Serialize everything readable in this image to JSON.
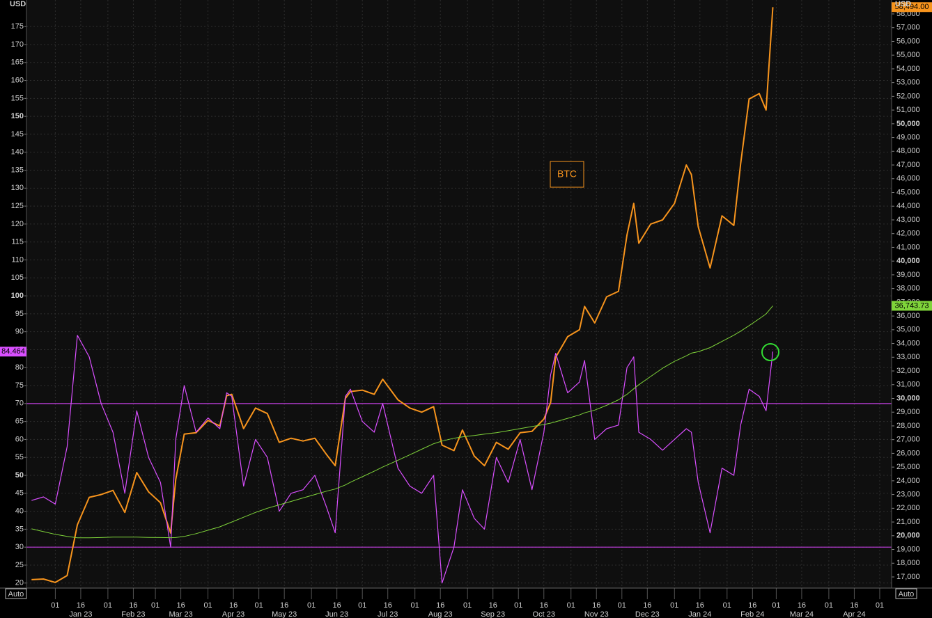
{
  "chart_data": {
    "type": "line",
    "y_unit": "USD",
    "y2_unit": "USD",
    "annotation": "BTC",
    "scale_mode_left": "Auto",
    "scale_mode_right": "Auto",
    "grid": true,
    "xlim": [
      "2022-12-15",
      "2024-05-08"
    ],
    "ylim": [
      18.6,
      182.4
    ],
    "y2lim": [
      16189,
      59014
    ],
    "yticks": [
      20,
      25,
      30,
      35,
      40,
      45,
      50,
      55,
      60,
      65,
      70,
      75,
      80,
      85,
      90,
      95,
      100,
      105,
      110,
      115,
      120,
      125,
      130,
      135,
      140,
      145,
      150,
      155,
      160,
      165,
      170,
      175
    ],
    "y2ticks": [
      {
        "value": 17000,
        "label": "17,000"
      },
      {
        "value": 18000,
        "label": "18,000"
      },
      {
        "value": 19000,
        "label": "19,000"
      },
      {
        "value": 20000,
        "label": "20,000"
      },
      {
        "value": 21000,
        "label": "21,000"
      },
      {
        "value": 22000,
        "label": "22,000"
      },
      {
        "value": 23000,
        "label": "23,000"
      },
      {
        "value": 24000,
        "label": "24,000"
      },
      {
        "value": 25000,
        "label": "25,000"
      },
      {
        "value": 26000,
        "label": "26,000"
      },
      {
        "value": 27000,
        "label": "27,000"
      },
      {
        "value": 28000,
        "label": "28,000"
      },
      {
        "value": 29000,
        "label": "29,000"
      },
      {
        "value": 30000,
        "label": "30,000"
      },
      {
        "value": 31000,
        "label": "31,000"
      },
      {
        "value": 32000,
        "label": "32,000"
      },
      {
        "value": 33000,
        "label": "33,000"
      },
      {
        "value": 34000,
        "label": "34,000"
      },
      {
        "value": 35000,
        "label": "35,000"
      },
      {
        "value": 36000,
        "label": "36,000"
      },
      {
        "value": 37000,
        "label": "37,000"
      },
      {
        "value": 38000,
        "label": "38,000"
      },
      {
        "value": 39000,
        "label": "39,000"
      },
      {
        "value": 40000,
        "label": "40,000"
      },
      {
        "value": 41000,
        "label": "41,000"
      },
      {
        "value": 42000,
        "label": "42,000"
      },
      {
        "value": 43000,
        "label": "43,000"
      },
      {
        "value": 44000,
        "label": "44,000"
      },
      {
        "value": 45000,
        "label": "45,000"
      },
      {
        "value": 46000,
        "label": "46,000"
      },
      {
        "value": 47000,
        "label": "47,000"
      },
      {
        "value": 48000,
        "label": "48,000"
      },
      {
        "value": 49000,
        "label": "49,000"
      },
      {
        "value": 50000,
        "label": "50,000"
      },
      {
        "value": 51000,
        "label": "51,000"
      },
      {
        "value": 52000,
        "label": "52,000"
      },
      {
        "value": 53000,
        "label": "53,000"
      },
      {
        "value": 54000,
        "label": "54,000"
      },
      {
        "value": 55000,
        "label": "55,000"
      },
      {
        "value": 56000,
        "label": "56,000"
      },
      {
        "value": 57000,
        "label": "57,000"
      },
      {
        "value": 58000,
        "label": "58,000"
      }
    ],
    "xticks": [
      {
        "value": "2023-01-01",
        "label": "01"
      },
      {
        "value": "2023-01-16",
        "label": "16"
      },
      {
        "value": "2023-02-01",
        "label": "01"
      },
      {
        "value": "2023-02-16",
        "label": "16"
      },
      {
        "value": "2023-03-01",
        "label": "01"
      },
      {
        "value": "2023-03-16",
        "label": "16"
      },
      {
        "value": "2023-04-01",
        "label": "01"
      },
      {
        "value": "2023-04-16",
        "label": "16"
      },
      {
        "value": "2023-05-01",
        "label": "01"
      },
      {
        "value": "2023-05-16",
        "label": "16"
      },
      {
        "value": "2023-06-01",
        "label": "01"
      },
      {
        "value": "2023-06-16",
        "label": "16"
      },
      {
        "value": "2023-07-01",
        "label": "01"
      },
      {
        "value": "2023-07-16",
        "label": "16"
      },
      {
        "value": "2023-08-01",
        "label": "01"
      },
      {
        "value": "2023-08-16",
        "label": "16"
      },
      {
        "value": "2023-09-01",
        "label": "01"
      },
      {
        "value": "2023-09-16",
        "label": "16"
      },
      {
        "value": "2023-10-01",
        "label": "01"
      },
      {
        "value": "2023-10-16",
        "label": "16"
      },
      {
        "value": "2023-11-01",
        "label": "01"
      },
      {
        "value": "2023-11-16",
        "label": "16"
      },
      {
        "value": "2023-12-01",
        "label": "01"
      },
      {
        "value": "2023-12-16",
        "label": "16"
      },
      {
        "value": "2024-01-01",
        "label": "01"
      },
      {
        "value": "2024-01-16",
        "label": "16"
      },
      {
        "value": "2024-02-01",
        "label": "01"
      },
      {
        "value": "2024-02-16",
        "label": "16"
      },
      {
        "value": "2024-03-01",
        "label": "01"
      },
      {
        "value": "2024-03-16",
        "label": "16"
      },
      {
        "value": "2024-04-01",
        "label": "01"
      },
      {
        "value": "2024-04-16",
        "label": "16"
      },
      {
        "value": "2024-05-01",
        "label": "01"
      }
    ],
    "month_labels": [
      {
        "value": "2023-01-16",
        "label": "Jan 23"
      },
      {
        "value": "2023-02-16",
        "label": "Feb 23"
      },
      {
        "value": "2023-03-16",
        "label": "Mar 23"
      },
      {
        "value": "2023-04-16",
        "label": "Apr 23"
      },
      {
        "value": "2023-05-16",
        "label": "May 23"
      },
      {
        "value": "2023-06-16",
        "label": "Jun 23"
      },
      {
        "value": "2023-07-16",
        "label": "Jul 23"
      },
      {
        "value": "2023-08-16",
        "label": "Aug 23"
      },
      {
        "value": "2023-09-16",
        "label": "Sep 23"
      },
      {
        "value": "2023-10-16",
        "label": "Oct 23"
      },
      {
        "value": "2023-11-16",
        "label": "Nov 23"
      },
      {
        "value": "2023-12-16",
        "label": "Dec 23"
      },
      {
        "value": "2024-01-16",
        "label": "Jan 24"
      },
      {
        "value": "2024-02-16",
        "label": "Feb 24"
      },
      {
        "value": "2024-03-16",
        "label": "Mar 24"
      },
      {
        "value": "2024-04-16",
        "label": "Apr 24"
      }
    ],
    "hlines": [
      70,
      30
    ],
    "hline_color": "#c23fe0",
    "x": [
      "2022-12-18",
      "2022-12-25",
      "2023-01-01",
      "2023-01-08",
      "2023-01-14",
      "2023-01-21",
      "2023-01-28",
      "2023-02-04",
      "2023-02-11",
      "2023-02-18",
      "2023-02-25",
      "2023-03-04",
      "2023-03-10",
      "2023-03-13",
      "2023-03-18",
      "2023-03-25",
      "2023-04-01",
      "2023-04-08",
      "2023-04-12",
      "2023-04-15",
      "2023-04-22",
      "2023-04-29",
      "2023-05-06",
      "2023-05-13",
      "2023-05-20",
      "2023-05-27",
      "2023-06-03",
      "2023-06-10",
      "2023-06-15",
      "2023-06-21",
      "2023-06-24",
      "2023-07-01",
      "2023-07-08",
      "2023-07-13",
      "2023-07-22",
      "2023-07-29",
      "2023-08-05",
      "2023-08-12",
      "2023-08-17",
      "2023-08-24",
      "2023-08-29",
      "2023-09-05",
      "2023-09-11",
      "2023-09-18",
      "2023-09-25",
      "2023-10-02",
      "2023-10-09",
      "2023-10-16",
      "2023-10-20",
      "2023-10-23",
      "2023-10-30",
      "2023-11-06",
      "2023-11-09",
      "2023-11-15",
      "2023-11-22",
      "2023-11-29",
      "2023-12-04",
      "2023-12-08",
      "2023-12-11",
      "2023-12-18",
      "2023-12-25",
      "2024-01-01",
      "2024-01-08",
      "2024-01-11",
      "2024-01-15",
      "2024-01-22",
      "2024-01-29",
      "2024-02-05",
      "2024-02-09",
      "2024-02-14",
      "2024-02-20",
      "2024-02-24",
      "2024-02-28"
    ],
    "series": [
      {
        "color": "#f7941d",
        "axis": "y2",
        "last_label": "58,494.00",
        "width": 2,
        "values": [
          16800,
          16850,
          16600,
          17100,
          20800,
          22800,
          23000,
          23300,
          21700,
          24600,
          23200,
          22400,
          20200,
          24100,
          27400,
          27500,
          28400,
          28000,
          30200,
          30300,
          27800,
          29300,
          28900,
          26800,
          27100,
          26900,
          27100,
          25900,
          25100,
          30000,
          30500,
          30600,
          30300,
          31400,
          29900,
          29300,
          29000,
          29400,
          26600,
          26200,
          27700,
          25800,
          25100,
          26800,
          26300,
          27500,
          27600,
          28500,
          29700,
          33000,
          34500,
          35000,
          36700,
          35500,
          37400,
          37800,
          41900,
          44200,
          41300,
          42700,
          43000,
          44200,
          47000,
          46300,
          42500,
          39500,
          43300,
          42600,
          47100,
          51800,
          52200,
          51000,
          58494
        ]
      },
      {
        "color": "#d94fff",
        "last_label": "84.464",
        "width": 1.2,
        "values": [
          43,
          44,
          42,
          58,
          89,
          83,
          70,
          62,
          45,
          68,
          55,
          48,
          30,
          60,
          75,
          62,
          66,
          63,
          73,
          72,
          47,
          60,
          55,
          40,
          45,
          46,
          50,
          41,
          34,
          72,
          74,
          65,
          62,
          70,
          52,
          47,
          45,
          50,
          20,
          30,
          46,
          38,
          35,
          55,
          48,
          60,
          46,
          62,
          78,
          84,
          73,
          76,
          82,
          60,
          63,
          64,
          80,
          83,
          62,
          60,
          57,
          60,
          63,
          62,
          48,
          34,
          52,
          50,
          64,
          74,
          72,
          68,
          84.464
        ]
      },
      {
        "color": "#7fd43a",
        "axis": "y2",
        "last_label": "36,743.73",
        "width": 1,
        "values": [
          20500,
          20300,
          20100,
          19950,
          19850,
          19850,
          19870,
          19900,
          19900,
          19900,
          19880,
          19870,
          19860,
          19870,
          19950,
          20150,
          20400,
          20650,
          20850,
          21000,
          21350,
          21700,
          22000,
          22250,
          22500,
          22750,
          23000,
          23250,
          23400,
          23700,
          23900,
          24300,
          24700,
          25000,
          25500,
          25900,
          26300,
          26700,
          26900,
          27100,
          27200,
          27300,
          27400,
          27500,
          27650,
          27800,
          27950,
          28100,
          28200,
          28300,
          28550,
          28800,
          28950,
          29150,
          29500,
          29900,
          30300,
          30700,
          31000,
          31600,
          32200,
          32700,
          33100,
          33300,
          33400,
          33700,
          34150,
          34600,
          34900,
          35300,
          35800,
          36150,
          36743.73
        ]
      }
    ]
  }
}
